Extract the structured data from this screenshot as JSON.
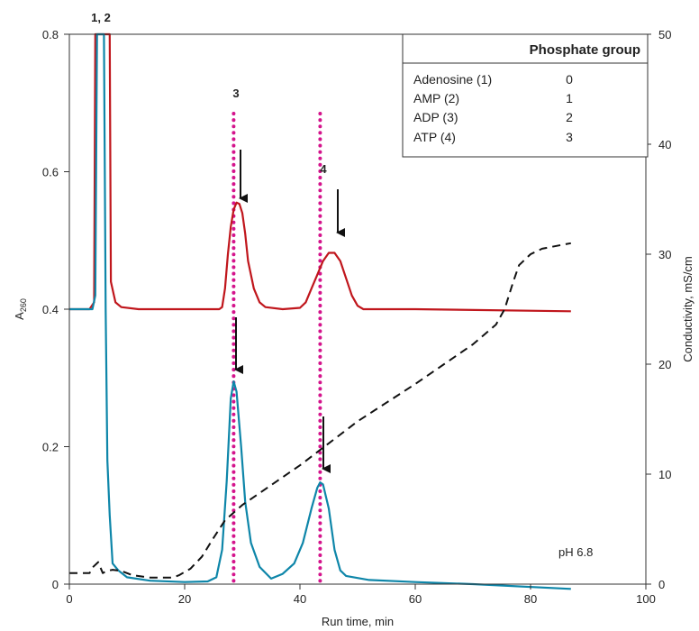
{
  "chart_data": {
    "type": "line",
    "title": "",
    "xlabel": "Run time, min",
    "ylabel": "A",
    "ylabel_sub": "260",
    "y2label": "Conductivity, mS/cm",
    "xlim": [
      0,
      100
    ],
    "ylim": [
      0,
      0.8
    ],
    "y2lim": [
      0,
      50
    ],
    "x_ticks": [
      0,
      20,
      40,
      60,
      80,
      100
    ],
    "y_ticks": [
      0,
      0.2,
      0.4,
      0.6,
      0.8
    ],
    "y_tick_labels": [
      "0",
      "0.2",
      "0.4",
      "0.6",
      "0.8"
    ],
    "y2_ticks": [
      0,
      10,
      20,
      30,
      40,
      50
    ],
    "grid": false,
    "annotation": "pH 6.8",
    "peak_labels": [
      {
        "text": "1, 2",
        "x": 5.5
      },
      {
        "text": "3",
        "x": 28.5
      },
      {
        "text": "4",
        "x": 43.5
      }
    ],
    "markers": [
      28.5,
      43.5
    ],
    "colors": {
      "red": "#c0161c",
      "blue": "#0e86a9",
      "magenta": "#d4148c",
      "dashed": "#111111"
    },
    "series": [
      {
        "key": "red",
        "axis": "left",
        "points": [
          [
            0,
            0.4
          ],
          [
            3.5,
            0.4
          ],
          [
            4.3,
            0.41
          ],
          [
            4.5,
            0.8
          ],
          [
            7,
            0.8
          ],
          [
            7.2,
            0.44
          ],
          [
            8,
            0.41
          ],
          [
            9,
            0.403
          ],
          [
            12,
            0.4
          ],
          [
            20,
            0.4
          ],
          [
            26,
            0.4
          ],
          [
            26.5,
            0.403
          ],
          [
            27,
            0.43
          ],
          [
            27.5,
            0.48
          ],
          [
            28,
            0.52
          ],
          [
            28.5,
            0.545
          ],
          [
            29,
            0.555
          ],
          [
            29.5,
            0.553
          ],
          [
            30,
            0.54
          ],
          [
            30.5,
            0.51
          ],
          [
            31,
            0.47
          ],
          [
            32,
            0.43
          ],
          [
            33,
            0.41
          ],
          [
            34,
            0.403
          ],
          [
            37,
            0.4
          ],
          [
            40,
            0.402
          ],
          [
            41,
            0.41
          ],
          [
            42,
            0.43
          ],
          [
            43,
            0.45
          ],
          [
            44,
            0.47
          ],
          [
            45,
            0.482
          ],
          [
            46,
            0.482
          ],
          [
            47,
            0.47
          ],
          [
            48,
            0.445
          ],
          [
            49,
            0.42
          ],
          [
            50,
            0.405
          ],
          [
            51,
            0.4
          ],
          [
            60,
            0.4
          ],
          [
            87,
            0.397
          ]
        ]
      },
      {
        "key": "blue",
        "axis": "left",
        "points": [
          [
            0,
            0.4
          ],
          [
            4,
            0.4
          ],
          [
            4.5,
            0.42
          ],
          [
            4.8,
            0.8
          ],
          [
            6.0,
            0.8
          ],
          [
            6.3,
            0.4
          ],
          [
            6.6,
            0.18
          ],
          [
            7,
            0.1
          ],
          [
            7.5,
            0.03
          ],
          [
            8.5,
            0.02
          ],
          [
            10,
            0.01
          ],
          [
            14,
            0.005
          ],
          [
            20,
            0.003
          ],
          [
            24,
            0.004
          ],
          [
            25.5,
            0.01
          ],
          [
            26.5,
            0.05
          ],
          [
            27.3,
            0.15
          ],
          [
            28,
            0.27
          ],
          [
            28.5,
            0.295
          ],
          [
            29,
            0.28
          ],
          [
            29.8,
            0.2
          ],
          [
            30.5,
            0.12
          ],
          [
            31.5,
            0.06
          ],
          [
            33,
            0.025
          ],
          [
            35,
            0.008
          ],
          [
            37,
            0.015
          ],
          [
            39,
            0.03
          ],
          [
            40.5,
            0.06
          ],
          [
            42,
            0.11
          ],
          [
            43,
            0.14
          ],
          [
            43.5,
            0.148
          ],
          [
            44,
            0.145
          ],
          [
            45,
            0.11
          ],
          [
            46,
            0.05
          ],
          [
            47,
            0.02
          ],
          [
            48,
            0.012
          ],
          [
            52,
            0.006
          ],
          [
            60,
            0.003
          ],
          [
            70,
            0.0
          ],
          [
            87,
            -0.007
          ]
        ]
      },
      {
        "key": "dashed",
        "axis": "right",
        "dashed": true,
        "points": [
          [
            0,
            1.0
          ],
          [
            3.5,
            1.0
          ],
          [
            4,
            1.5
          ],
          [
            5,
            2.0
          ],
          [
            5.8,
            1.0
          ],
          [
            6.5,
            1.2
          ],
          [
            7.5,
            1.3
          ],
          [
            9,
            1.2
          ],
          [
            11,
            0.8
          ],
          [
            14,
            0.6
          ],
          [
            18,
            0.6
          ],
          [
            19,
            0.8
          ],
          [
            21,
            1.4
          ],
          [
            23,
            2.5
          ],
          [
            25,
            4.2
          ],
          [
            27,
            5.8
          ],
          [
            30,
            7.2
          ],
          [
            35,
            9.0
          ],
          [
            40,
            10.8
          ],
          [
            45,
            12.8
          ],
          [
            50,
            14.8
          ],
          [
            55,
            16.5
          ],
          [
            60,
            18.2
          ],
          [
            65,
            20.0
          ],
          [
            70,
            21.8
          ],
          [
            74,
            23.6
          ],
          [
            75.5,
            25.0
          ],
          [
            77,
            27.5
          ],
          [
            78,
            29.0
          ],
          [
            80,
            30.0
          ],
          [
            82,
            30.5
          ],
          [
            85,
            30.8
          ],
          [
            87,
            31.0
          ]
        ]
      }
    ]
  },
  "table": {
    "header": "Phosphate group",
    "rows": [
      {
        "name": "Adenosine (1)",
        "value": "0"
      },
      {
        "name": "AMP (2)",
        "value": "1"
      },
      {
        "name": "ADP (3)",
        "value": "2"
      },
      {
        "name": "ATP (4)",
        "value": "3"
      }
    ]
  }
}
